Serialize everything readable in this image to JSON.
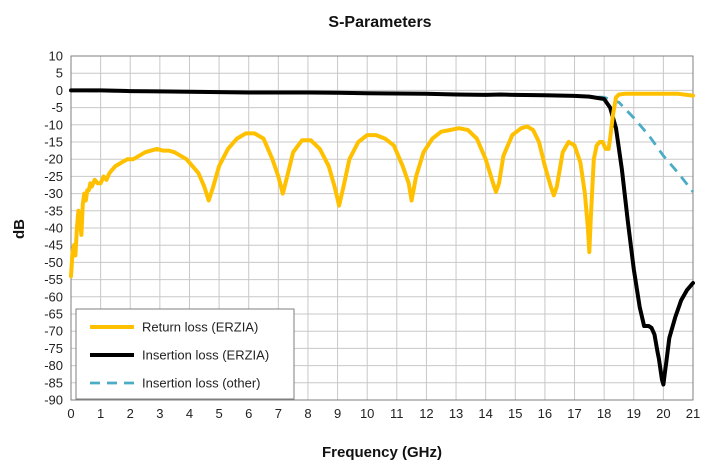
{
  "chart_data": {
    "type": "line",
    "title": "S-Parameters",
    "xlabel": "Frequency (GHz)",
    "ylabel": "dB",
    "xlim": [
      0,
      21
    ],
    "ylim": [
      -90,
      10
    ],
    "xticks": [
      0,
      1,
      2,
      3,
      4,
      5,
      6,
      7,
      8,
      9,
      10,
      11,
      12,
      13,
      14,
      15,
      16,
      17,
      18,
      19,
      20,
      21
    ],
    "yticks": [
      10,
      5,
      0,
      -5,
      -10,
      -15,
      -20,
      -25,
      -30,
      -35,
      -40,
      -45,
      -50,
      -55,
      -60,
      -65,
      -70,
      -75,
      -80,
      -85,
      -90
    ],
    "grid": true,
    "legend_position": "bottom-left",
    "series": [
      {
        "name": "Return loss (ERZIA)",
        "color": "#FFC000",
        "style": "solid",
        "x": [
          0,
          0.05,
          0.1,
          0.15,
          0.2,
          0.25,
          0.3,
          0.35,
          0.4,
          0.45,
          0.5,
          0.55,
          0.6,
          0.65,
          0.7,
          0.8,
          0.9,
          1,
          1.1,
          1.2,
          1.3,
          1.5,
          1.7,
          1.9,
          2.1,
          2.3,
          2.5,
          2.7,
          2.9,
          3.1,
          3.3,
          3.5,
          3.7,
          3.9,
          4.1,
          4.3,
          4.5,
          4.65,
          4.8,
          5,
          5.3,
          5.6,
          5.9,
          6.2,
          6.5,
          6.8,
          7.0,
          7.15,
          7.3,
          7.5,
          7.8,
          8.1,
          8.4,
          8.7,
          8.9,
          9.05,
          9.2,
          9.4,
          9.7,
          10.0,
          10.3,
          10.6,
          10.9,
          11.2,
          11.4,
          11.5,
          11.65,
          11.9,
          12.2,
          12.5,
          12.8,
          13.1,
          13.4,
          13.7,
          14.0,
          14.25,
          14.35,
          14.45,
          14.6,
          14.9,
          15.2,
          15.4,
          15.6,
          15.8,
          16.0,
          16.2,
          16.3,
          16.4,
          16.6,
          16.8,
          17.0,
          17.2,
          17.35,
          17.45,
          17.5,
          17.55,
          17.65,
          17.75,
          17.85,
          17.95,
          18.05,
          18.15,
          18.2,
          18.3,
          18.4,
          18.5,
          18.7,
          19.0,
          19.5,
          20.0,
          20.5,
          21.0
        ],
        "y": [
          -54,
          -47,
          -45,
          -48,
          -40,
          -35,
          -38,
          -42,
          -33,
          -30,
          -32,
          -29,
          -29,
          -27,
          -28,
          -26,
          -27,
          -27,
          -25,
          -26,
          -24,
          -22,
          -21,
          -20,
          -20,
          -19,
          -18,
          -17.5,
          -17,
          -17.5,
          -17.5,
          -18,
          -19,
          -20,
          -22,
          -24,
          -28,
          -32,
          -28,
          -22,
          -17,
          -14,
          -12.5,
          -12.5,
          -14,
          -20,
          -25,
          -30,
          -25,
          -18,
          -14.5,
          -14.5,
          -17,
          -22,
          -28,
          -33.5,
          -28,
          -20,
          -15,
          -13,
          -13,
          -14,
          -16,
          -22,
          -27,
          -32,
          -25,
          -18,
          -14,
          -12,
          -11.5,
          -11,
          -11.5,
          -14,
          -20,
          -27,
          -29.5,
          -27,
          -19,
          -13,
          -11,
          -10.5,
          -11.5,
          -15,
          -22,
          -28,
          -30.5,
          -28,
          -18,
          -15,
          -16,
          -21,
          -30,
          -40,
          -47,
          -37,
          -20,
          -16,
          -15,
          -15,
          -17,
          -17,
          -14,
          -7,
          -2,
          -1.2,
          -1,
          -1,
          -1,
          -1,
          -1,
          -1.5
        ]
      },
      {
        "name": "Insertion loss (ERZIA)",
        "color": "#000000",
        "style": "solid",
        "x": [
          0,
          1,
          2,
          3,
          4,
          5,
          6,
          7,
          8,
          9,
          10,
          11,
          12,
          13,
          14,
          14.5,
          15,
          16,
          17,
          17.5,
          18.0,
          18.2,
          18.4,
          18.6,
          18.8,
          19.0,
          19.2,
          19.35,
          19.5,
          19.6,
          19.7,
          19.8,
          19.85,
          19.95,
          20.0,
          20.05,
          20.1,
          20.2,
          20.4,
          20.6,
          20.8,
          21.0
        ],
        "y": [
          0,
          0,
          -0.2,
          -0.3,
          -0.4,
          -0.5,
          -0.6,
          -0.6,
          -0.6,
          -0.7,
          -0.8,
          -0.9,
          -1.0,
          -1.2,
          -1.3,
          -1.2,
          -1.3,
          -1.4,
          -1.6,
          -1.8,
          -2.5,
          -5,
          -11,
          -23,
          -38,
          -52,
          -63,
          -68.5,
          -68.5,
          -69,
          -71,
          -76,
          -78,
          -84,
          -85.5,
          -82,
          -79,
          -72,
          -66,
          -61,
          -58,
          -56
        ]
      },
      {
        "name": "Insertion loss (other)",
        "color": "#4BACC6",
        "style": "dashed",
        "x": [
          0,
          1,
          2,
          3,
          4,
          5,
          6,
          7,
          8,
          9,
          10,
          11,
          12,
          13,
          14,
          15,
          16,
          17,
          18.0,
          18.5,
          19.0,
          19.5,
          20.0,
          20.5,
          21.0
        ],
        "y": [
          0,
          -0.2,
          -0.3,
          -0.4,
          -0.5,
          -0.6,
          -0.6,
          -0.7,
          -0.7,
          -0.8,
          -0.9,
          -1.0,
          -1.1,
          -1.2,
          -1.3,
          -1.4,
          -1.5,
          -1.6,
          -2.0,
          -3.5,
          -8,
          -13,
          -19,
          -24,
          -29.5
        ]
      }
    ]
  }
}
